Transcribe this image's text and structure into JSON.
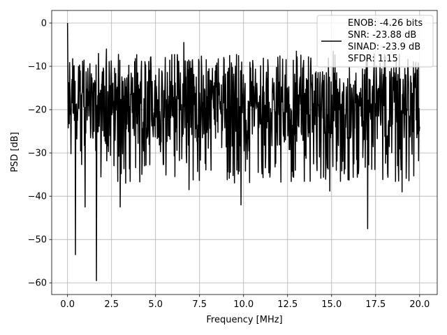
{
  "chart_data": {
    "type": "line",
    "xlabel": "Frequency [MHz]",
    "ylabel": "PSD [dB]",
    "xlim": [
      -0.9,
      21.0
    ],
    "ylim": [
      -62.7,
      2.9
    ],
    "xticks": [
      0.0,
      2.5,
      5.0,
      7.5,
      10.0,
      12.5,
      15.0,
      17.5,
      20.0
    ],
    "xtick_labels": [
      "0.0",
      "2.5",
      "5.0",
      "7.5",
      "10.0",
      "12.5",
      "15.0",
      "17.5",
      "20.0"
    ],
    "yticks": [
      0,
      -10,
      -20,
      -30,
      -40,
      -50,
      -60
    ],
    "ytick_labels": [
      "0",
      "−10",
      "−20",
      "−30",
      "−40",
      "−50",
      "−60"
    ],
    "grid": true,
    "legend_position": "top-right",
    "series": [
      {
        "name": "ENOB: -4.26 bits\nSNR: -23.88 dB\nSINAD: -23.9 dB\nSFDR: 1.15",
        "color": "#000000",
        "x_range": [
          0.0,
          20.0
        ],
        "sample_count": 1024,
        "noise_floor_db": -19,
        "noise_spread_db": 8,
        "peaks": [
          {
            "x": 0.0,
            "y": 0.0
          },
          {
            "x": 2.2,
            "y": -6.0
          },
          {
            "x": 6.6,
            "y": -4.5
          },
          {
            "x": 13.0,
            "y": -6.5
          },
          {
            "x": 15.1,
            "y": -6.5
          }
        ],
        "dips": [
          {
            "x": 0.45,
            "y": -53.5
          },
          {
            "x": 1.0,
            "y": -42.5
          },
          {
            "x": 1.65,
            "y": -59.5
          },
          {
            "x": 3.0,
            "y": -42.5
          },
          {
            "x": 3.3,
            "y": -37.0
          },
          {
            "x": 6.9,
            "y": -38.5
          },
          {
            "x": 9.85,
            "y": -42.0
          },
          {
            "x": 14.9,
            "y": -38.8
          },
          {
            "x": 17.05,
            "y": -47.5
          },
          {
            "x": 19.0,
            "y": -39.0
          }
        ]
      }
    ],
    "legend": {
      "lines": [
        "ENOB: -4.26 bits",
        "SNR: -23.88 dB",
        "SINAD: -23.9 dB",
        "SFDR: 1.15"
      ]
    }
  }
}
